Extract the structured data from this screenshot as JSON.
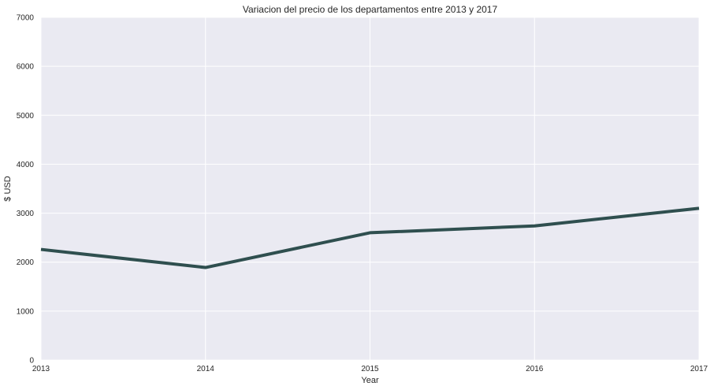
{
  "chart_data": {
    "type": "line",
    "title": "Variacion del precio de los departamentos entre 2013 y 2017",
    "xlabel": "Year",
    "ylabel": "$ USD",
    "x": [
      "2013",
      "2014",
      "2015",
      "2016",
      "2017"
    ],
    "series": [
      {
        "values": [
          2260,
          1890,
          2600,
          2740,
          3100
        ]
      }
    ],
    "xlim": [
      2013,
      2017
    ],
    "ylim": [
      0,
      7000
    ],
    "yticks": [
      "0",
      "1000",
      "2000",
      "3000",
      "4000",
      "5000",
      "6000",
      "7000"
    ],
    "xticks": [
      "2013",
      "2014",
      "2015",
      "2016",
      "2017"
    ],
    "grid": true,
    "colors": {
      "background": "#eaeaf2",
      "grid": "#ffffff",
      "line": "#2f4f4f"
    }
  }
}
